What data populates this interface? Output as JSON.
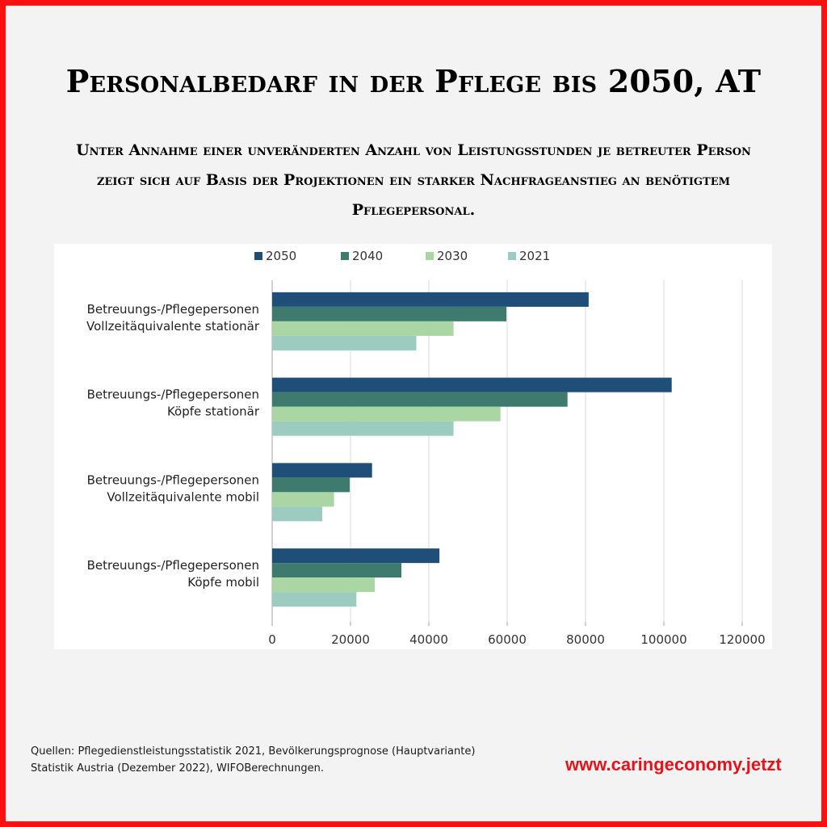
{
  "title": "Personalbedarf in der Pflege bis 2050, AT",
  "subtitle": "Unter Annahme einer unveränderten Anzahl von Leistungsstunden je betreuter Person zeigt sich auf Basis der Projektionen ein starker Nachfrageanstieg an benötigtem Pflegepersonal.",
  "source_line1": "Quellen: Pflegedienstleistungsstatistik 2021, Bevölkerungsprognose (Hauptvariante)",
  "source_line2": "Statistik Austria (Dezember 2022), WIFOBerechnungen.",
  "website": "www.caringeconomy.jetzt",
  "colors": {
    "border": "#ff1010",
    "website": "#e8121a",
    "s2050": "#1f4e79",
    "s2040": "#3e7b6e",
    "s2030": "#a9d6a2",
    "s2021": "#9ccbc0"
  },
  "chart_data": {
    "type": "bar",
    "orientation": "horizontal",
    "categories": [
      [
        "Betreuungs-/Pflegepersonen",
        "Vollzeitäquivalente stationär"
      ],
      [
        "Betreuungs-/Pflegepersonen",
        "Köpfe stationär"
      ],
      [
        "Betreuungs-/Pflegepersonen",
        "Vollzeitäquivalente mobil"
      ],
      [
        "Betreuungs-/Pflegepersonen",
        "Köpfe mobil"
      ]
    ],
    "series": [
      {
        "name": "2050",
        "color": "#1f4e79",
        "values": [
          80800,
          102000,
          25500,
          42700
        ]
      },
      {
        "name": "2040",
        "color": "#3e7b6e",
        "values": [
          59800,
          75400,
          19800,
          33000
        ]
      },
      {
        "name": "2030",
        "color": "#a9d6a2",
        "values": [
          46300,
          58300,
          15800,
          26200
        ]
      },
      {
        "name": "2021",
        "color": "#9ccbc0",
        "values": [
          36800,
          46300,
          12800,
          21500
        ]
      }
    ],
    "xlim": [
      0,
      120000
    ],
    "xticks": [
      "0",
      "20000",
      "40000",
      "60000",
      "80000",
      "100000",
      "120000"
    ],
    "grid": true,
    "legend": "top"
  }
}
